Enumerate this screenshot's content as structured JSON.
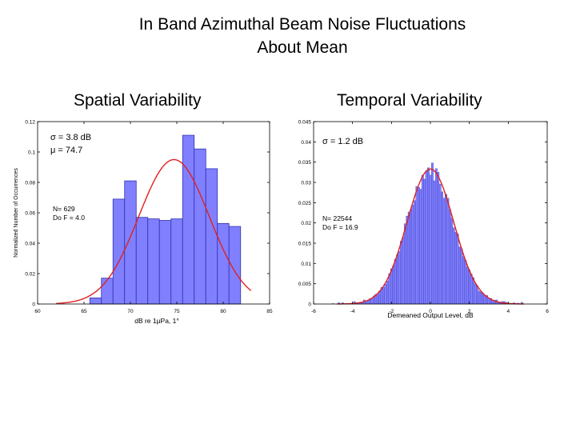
{
  "page": {
    "title_line1": "In Band Azimuthal Beam Noise Fluctuations",
    "title_line2": "About  Mean"
  },
  "chart_data": [
    {
      "type": "bar",
      "subtitle": "Spatial Variability",
      "xlabel": "dB re 1μPa, 1°",
      "ylabel": "Normalized Number of Occurrences",
      "xlim": [
        60,
        85
      ],
      "ylim": [
        0,
        0.12
      ],
      "xticks": [
        60,
        65,
        70,
        75,
        80,
        85
      ],
      "ytick_labels": [
        "0",
        "0.02",
        "0.04",
        "0.06",
        "0.08",
        "0.1",
        "0.12"
      ],
      "bin_width": 1.25,
      "bins": [
        [
          66.25,
          0.004
        ],
        [
          67.5,
          0.017
        ],
        [
          68.75,
          0.069
        ],
        [
          70.0,
          0.081
        ],
        [
          71.25,
          0.057
        ],
        [
          72.5,
          0.056
        ],
        [
          73.75,
          0.055
        ],
        [
          75.0,
          0.056
        ],
        [
          76.25,
          0.111
        ],
        [
          77.5,
          0.102
        ],
        [
          78.75,
          0.089
        ],
        [
          80.0,
          0.053
        ],
        [
          81.25,
          0.051
        ]
      ],
      "fit": {
        "mean": 74.7,
        "sigma": 3.8,
        "peak": 0.095,
        "range": [
          62,
          83
        ]
      },
      "stats": {
        "sigma_text": "σ = 3.8 dB",
        "mu_text": "μ = 74.7"
      },
      "counts": {
        "n_text": "N= 629",
        "dof_text": "Do F = 4.0"
      },
      "colors": {
        "bars": "#8080ff",
        "bar_edge": "#3030b0",
        "fit": "#e02020"
      }
    },
    {
      "type": "bar",
      "subtitle": "Temporal Variability",
      "xlabel": "Demeaned Output Level, dB",
      "ylabel": "",
      "xlim": [
        -6,
        6
      ],
      "ylim": [
        0,
        0.045
      ],
      "xticks": [
        -6,
        -4,
        -2,
        0,
        2,
        4,
        6
      ],
      "ytick_labels": [
        "0",
        "0.005",
        "0.01",
        "0.015",
        "0.02",
        "0.025",
        "0.03",
        "0.035",
        "0.04",
        "0.045"
      ],
      "bin_width": 0.1,
      "bins_range": [
        -5.0,
        5.0
      ],
      "fit": {
        "mean": 0,
        "sigma": 1.2,
        "peak": 0.0333,
        "range": [
          -4.8,
          4.8
        ]
      },
      "stats": {
        "sigma_text": "σ = 1.2 dB"
      },
      "counts": {
        "n_text": "N= 22544",
        "dof_text": "Do F = 16.9"
      },
      "colors": {
        "bars": "#8080ff",
        "bar_edge": "#3030b0",
        "fit": "#e02020"
      }
    }
  ]
}
